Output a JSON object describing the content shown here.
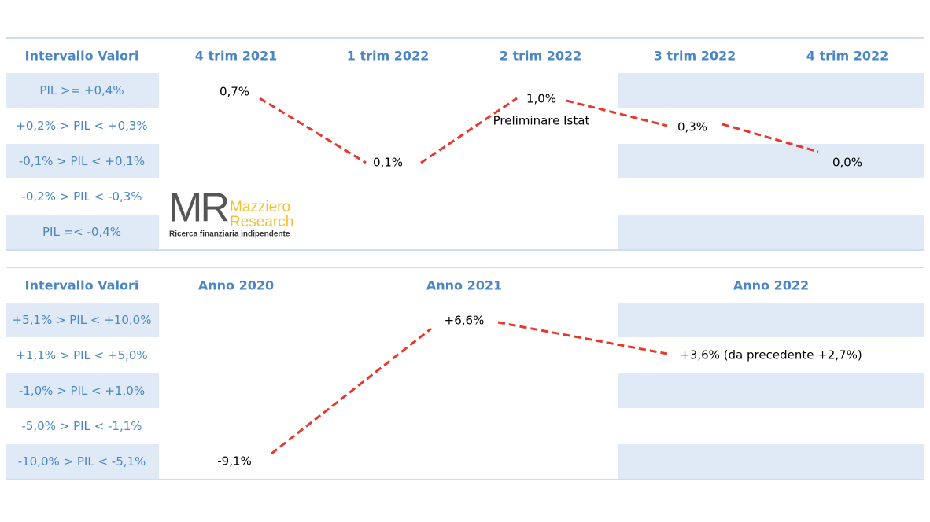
{
  "quarterly": {
    "headers": [
      "Intervallo Valori",
      "4 trim 2021",
      "1 trim 2022",
      "2 trim 2022",
      "3 trim 2022",
      "4 trim 2022"
    ],
    "rows": [
      "PIL >= +0,4%",
      "+0,2% > PIL < +0,3%",
      "-0,1% > PIL < +0,1%",
      "-0,2% > PIL < -0,3%",
      "PIL =< -0,4%"
    ],
    "points": [
      {
        "label": "0,7%"
      },
      {
        "label": "0,1%"
      },
      {
        "label": "1,0%",
        "note": "Preliminare Istat"
      },
      {
        "label": "0,3%"
      },
      {
        "label": "0,0%"
      }
    ]
  },
  "annual": {
    "headers": [
      "Intervallo Valori",
      "Anno 2020",
      "Anno 2021",
      "Anno 2022"
    ],
    "rows": [
      "+5,1% > PIL < +10,0%",
      "+1,1% > PIL < +5,0%",
      "-1,0% > PIL < +1,0%",
      "-5,0% > PIL < -1,1%",
      "-10,0% > PIL < -5,1%"
    ],
    "points": [
      {
        "label": "-9,1%"
      },
      {
        "label": "+6,6%"
      },
      {
        "label": "+3,6% (da precedente +2,7%)"
      }
    ]
  },
  "logo": {
    "mark": "MR",
    "name1": "Mazziero",
    "name2": "Research",
    "tagline": "Ricerca finanziaria indipendente"
  }
}
